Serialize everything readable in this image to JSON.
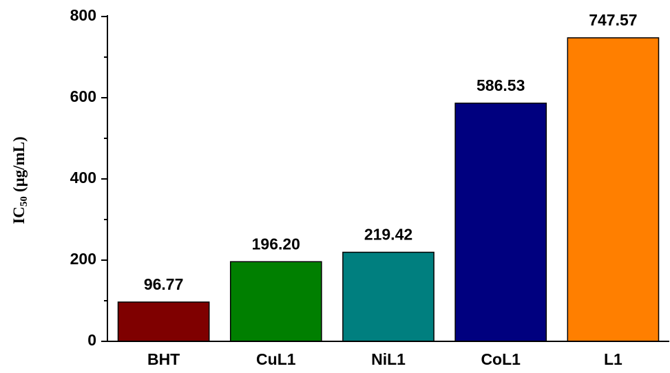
{
  "chart_data": {
    "type": "bar",
    "ylabel": {
      "main": "IC",
      "sub": "50",
      "unit": "(μg/mL)"
    },
    "categories": [
      "BHT",
      "CuL1",
      "NiL1",
      "CoL1",
      "L1"
    ],
    "values": [
      96.77,
      196.2,
      219.42,
      586.53,
      747.57
    ],
    "value_labels": [
      "96.77",
      "196.20",
      "219.42",
      "586.53",
      "747.57"
    ],
    "colors": [
      "#7f0000",
      "#007f00",
      "#007f7f",
      "#00007f",
      "#ff7f00"
    ],
    "ylim": [
      0,
      800
    ],
    "yticks": [
      0,
      200,
      400,
      600,
      800
    ],
    "yminor_ticks": [
      100,
      300,
      500,
      700
    ]
  }
}
